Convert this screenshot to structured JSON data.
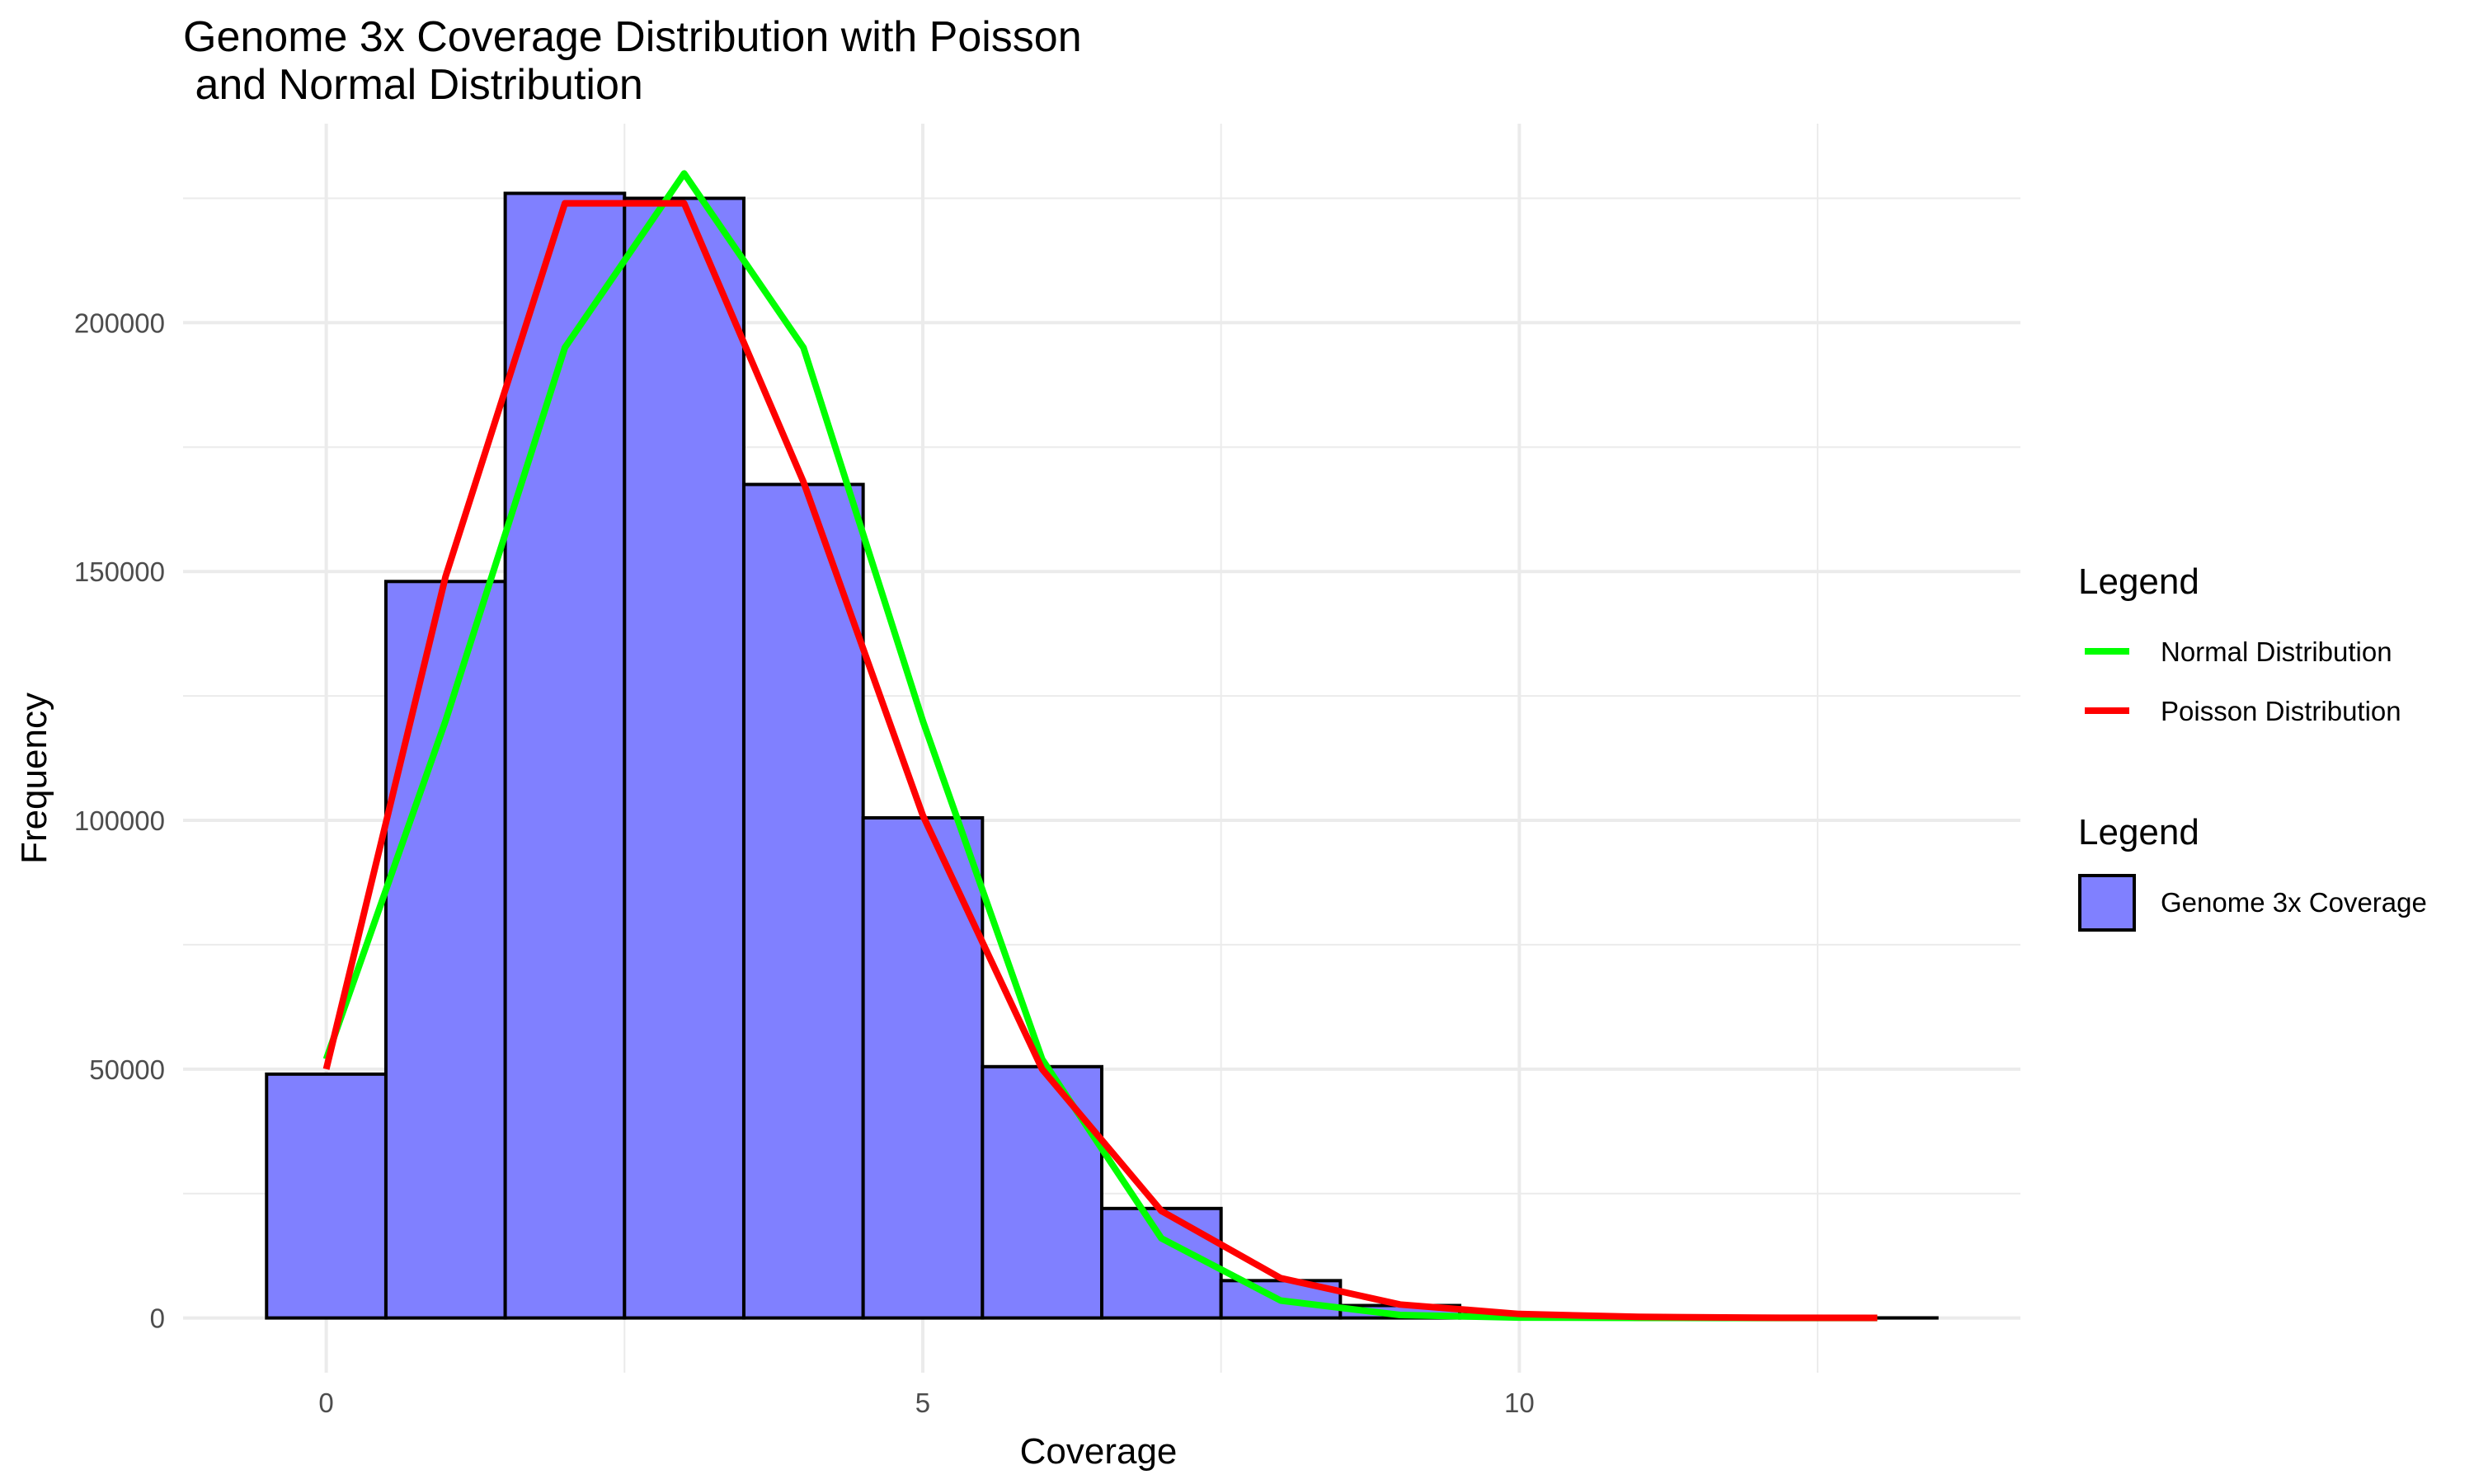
{
  "chart_data": {
    "type": "bar",
    "title_lines": [
      "Genome 3x Coverage Distribution with Poisson",
      " and Normal Distribution"
    ],
    "xlabel": "Coverage",
    "ylabel": "Frequency",
    "xlim": [
      -1.2,
      14.2
    ],
    "ylim": [
      -11000,
      240000
    ],
    "x_ticks": [
      0,
      5,
      10
    ],
    "x_tick_labels": [
      "0",
      "5",
      "10"
    ],
    "y_ticks": [
      0,
      50000,
      100000,
      150000,
      200000
    ],
    "y_tick_labels": [
      "0",
      "50000",
      "100000",
      "150000",
      "200000"
    ],
    "grid": true,
    "histogram": {
      "name": "Genome 3x Coverage",
      "fill": "#8080ff",
      "stroke": "#000000",
      "bin_width": 1,
      "x": [
        0,
        1,
        2,
        3,
        4,
        5,
        6,
        7,
        8,
        9,
        10,
        11,
        12,
        13
      ],
      "values": [
        49000,
        148000,
        226000,
        225000,
        167500,
        100500,
        50500,
        22000,
        7500,
        2500,
        700,
        200,
        60,
        20
      ]
    },
    "series": [
      {
        "name": "Normal Distribution",
        "color": "#00ff00",
        "x": [
          0,
          1,
          2,
          3,
          4,
          5,
          6,
          7,
          8,
          9,
          10,
          11,
          12,
          13
        ],
        "values": [
          52000,
          120000,
          195000,
          230000,
          195000,
          120000,
          52000,
          16000,
          3500,
          600,
          80,
          10,
          1,
          0
        ]
      },
      {
        "name": "Poisson Distribution",
        "color": "#ff0000",
        "x": [
          0,
          1,
          2,
          3,
          4,
          5,
          6,
          7,
          8,
          9,
          10,
          11,
          12,
          13
        ],
        "values": [
          50000,
          149000,
          224000,
          224000,
          168000,
          101000,
          50000,
          21500,
          8000,
          2700,
          800,
          220,
          55,
          13
        ]
      }
    ],
    "legend": {
      "position": "right",
      "groups": [
        {
          "title": "Legend",
          "entries": [
            {
              "label": "Normal Distribution",
              "kind": "line",
              "color": "#00ff00"
            },
            {
              "label": "Poisson Distribution",
              "kind": "line",
              "color": "#ff0000"
            }
          ]
        },
        {
          "title": "Legend",
          "entries": [
            {
              "label": "Genome 3x Coverage",
              "kind": "fill",
              "color": "#8080ff",
              "stroke": "#000000"
            }
          ]
        }
      ]
    }
  }
}
